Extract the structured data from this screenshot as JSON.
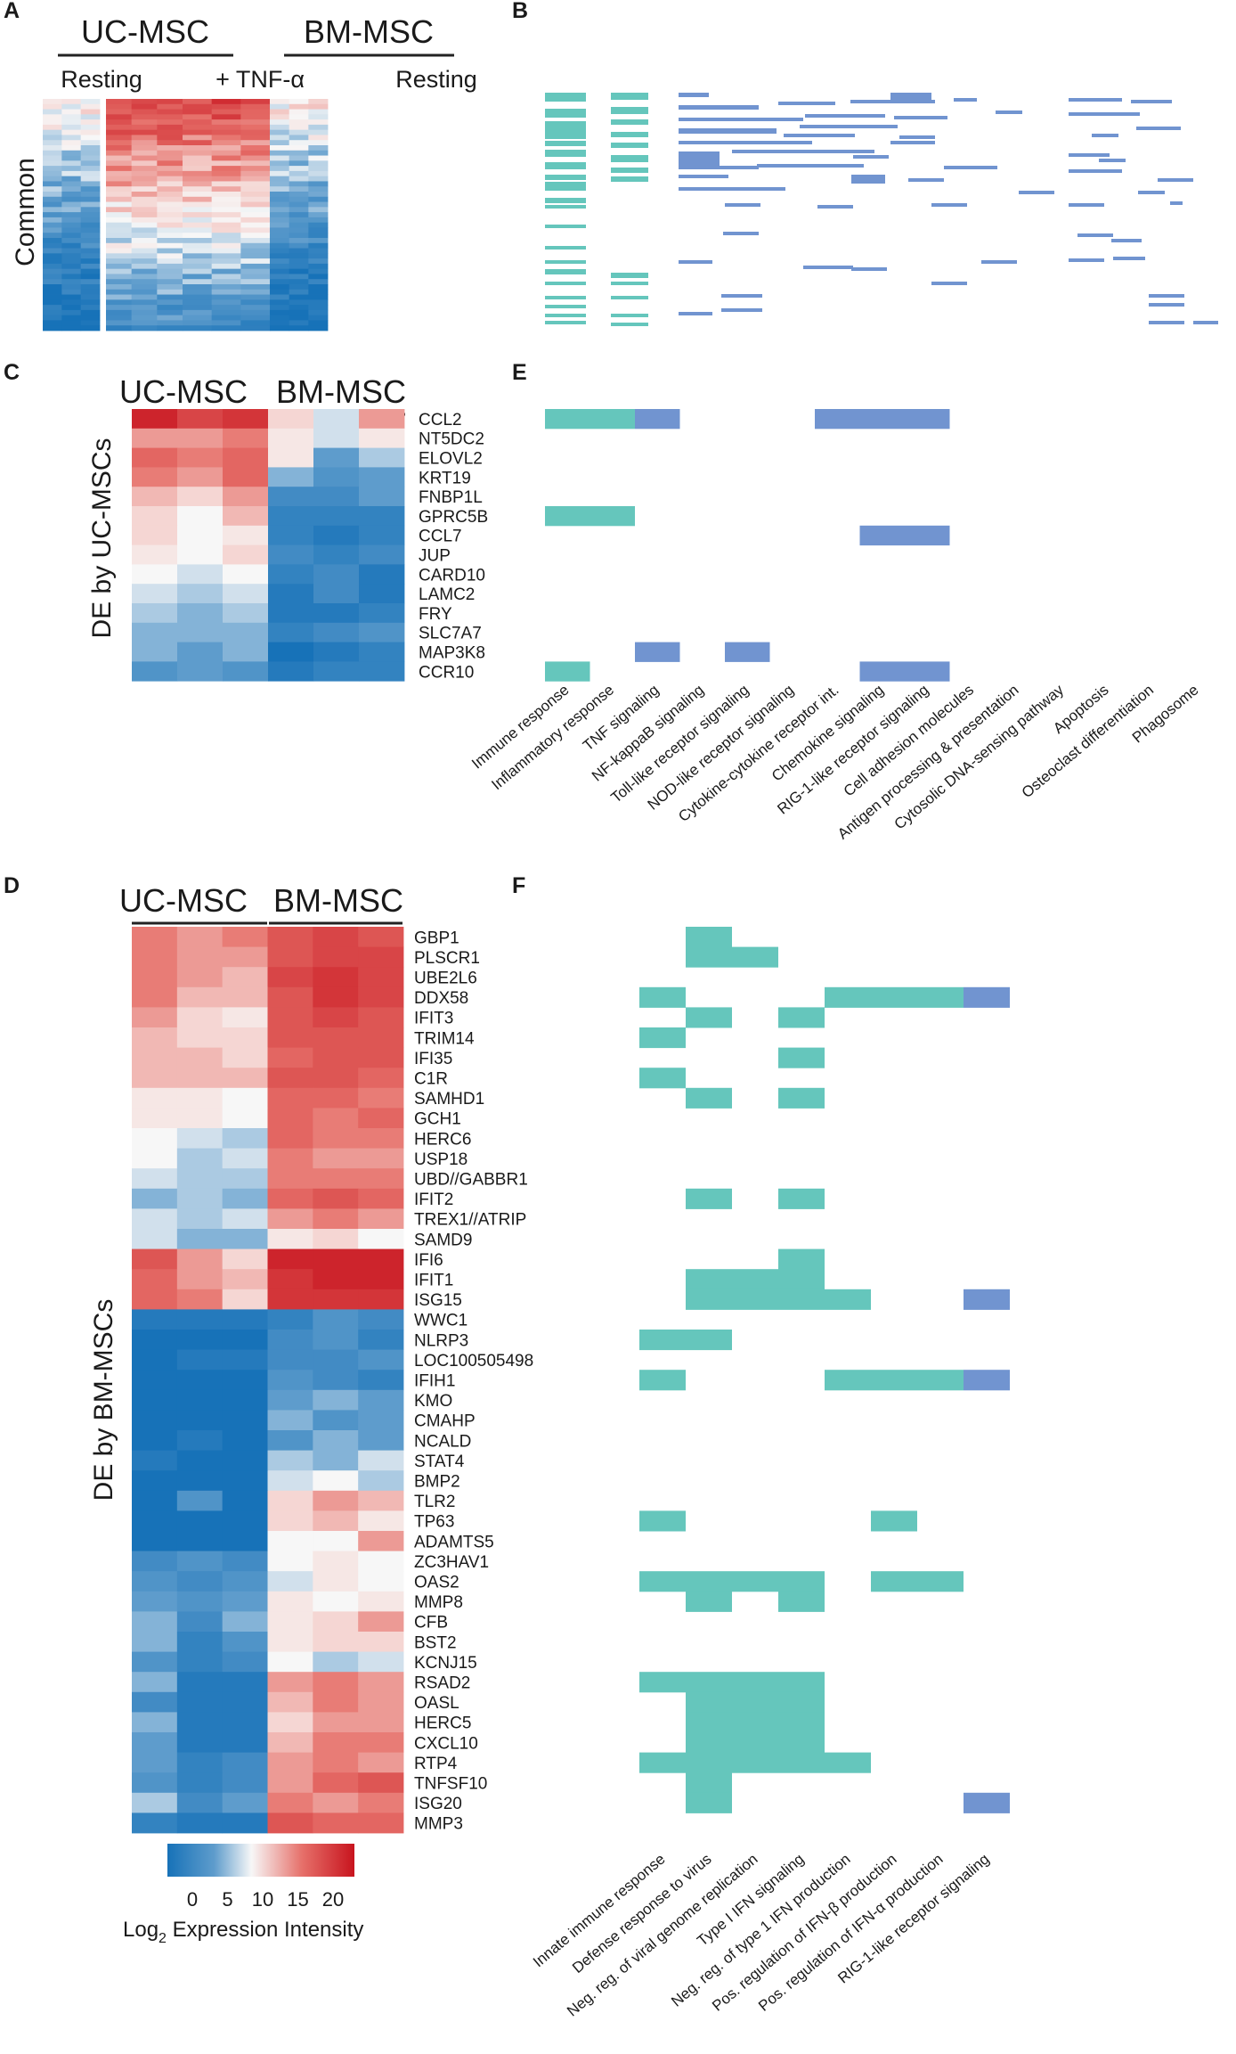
{
  "chart_data": [
    {
      "panel": "A",
      "type": "heatmap",
      "group_labels": [
        "UC-MSC",
        "BM-MSC"
      ],
      "column_labels": [
        "Resting",
        "+ TNF-α",
        "Resting"
      ],
      "row_label": "Common",
      "rows": 45,
      "trend": "Genes commonly induced by TNF-α in UC-MSC and BM-MSC; blue (low) at rest, red (high) after TNF-α"
    },
    {
      "panel": "B",
      "type": "heatmap",
      "description": "Pathway membership of common genes (binary matrix)",
      "colors": {
        "go": "#65c6bc",
        "kegg": "#7194d0"
      }
    },
    {
      "panel": "C",
      "type": "heatmap",
      "group_labels": [
        "UC-MSC",
        "BM-MSC"
      ],
      "row_label": "DE by UC-MSCs",
      "genes": [
        "CCL2",
        "NT5DC2",
        "ELOVL2",
        "KRT19",
        "FNBP1L",
        "GPRC5B",
        "CCL7",
        "JUP",
        "CARD10",
        "LAMC2",
        "FRY",
        "SLC7A7",
        "MAP3K8",
        "CCR10"
      ],
      "values": [
        [
          19,
          17,
          18,
          11,
          8,
          13
        ],
        [
          13,
          13,
          14,
          10,
          8,
          10
        ],
        [
          15,
          14,
          15,
          10,
          5,
          7
        ],
        [
          14,
          13,
          15,
          6,
          4,
          5
        ],
        [
          12,
          11,
          13,
          3,
          3,
          5
        ],
        [
          11,
          9,
          12,
          2,
          2,
          2
        ],
        [
          11,
          9,
          10,
          2,
          1,
          2
        ],
        [
          10,
          9,
          11,
          3,
          2,
          3
        ],
        [
          9,
          8,
          9,
          2,
          3,
          1
        ],
        [
          8,
          7,
          8,
          1,
          3,
          1
        ],
        [
          7,
          6,
          7,
          1,
          1,
          2
        ],
        [
          6,
          6,
          6,
          2,
          3,
          4
        ],
        [
          6,
          5,
          6,
          0,
          1,
          2
        ],
        [
          4,
          5,
          4,
          1,
          2,
          2
        ]
      ],
      "categories": [
        "Immune response",
        "Inflammatory response",
        "TNF signaling",
        "NF-kappaB signaling",
        "Toll-like receptor signaling",
        "NOD-like receptor signaling",
        "Cytokine-cytokine receptor int.",
        "Chemokine signaling",
        "RIG-1-like receptor signaling",
        "Cell adhesion molecules",
        "Antigen processing & presentation",
        "Cytosolic DNA-sensing pathway",
        "Apoptosis",
        "Osteoclast differentiation",
        "Phagosome"
      ],
      "membership": [
        [
          "CCL2",
          [
            0,
            1,
            2,
            6,
            7,
            8
          ]
        ],
        [
          "GPRC5B",
          [
            0,
            1
          ]
        ],
        [
          "CCL7",
          [
            7,
            8
          ]
        ],
        [
          "MAP3K8",
          [
            2,
            4
          ]
        ],
        [
          "CCR10",
          [
            0,
            7,
            8
          ]
        ]
      ],
      "category_types": [
        "go",
        "go",
        "kegg",
        "kegg",
        "kegg",
        "kegg",
        "kegg",
        "kegg",
        "kegg",
        "kegg",
        "kegg",
        "kegg",
        "kegg",
        "kegg",
        "kegg"
      ]
    },
    {
      "panel": "D",
      "type": "heatmap",
      "group_labels": [
        "UC-MSC",
        "BM-MSC"
      ],
      "row_label": "DE by BM-MSCs",
      "genes": [
        "GBP1",
        "PLSCR1",
        "UBE2L6",
        "DDX58",
        "IFIT3",
        "TRIM14",
        "IFI35",
        "C1R",
        "SAMHD1",
        "GCH1",
        "HERC6",
        "USP18",
        "UBD//GABBR1",
        "IFIT2",
        "TREX1//ATRIP",
        "SAMD9",
        "IFI6",
        "IFIT1",
        "ISG15",
        "WWC1",
        "NLRP3",
        "LOC100505498",
        "IFIH1",
        "KMO",
        "CMAHP",
        "NCALD",
        "STAT4",
        "BMP2",
        "TLR2",
        "TP63",
        "ADAMTS5",
        "ZC3HAV1",
        "OAS2",
        "MMP8",
        "CFB",
        "BST2",
        "KCNJ15",
        "RSAD2",
        "OASL",
        "HERC5",
        "CXCL10",
        "RTP4",
        "TNFSF10",
        "ISG20",
        "MMP3"
      ],
      "values": [
        [
          14,
          13,
          14,
          16,
          17,
          16
        ],
        [
          14,
          13,
          13,
          16,
          17,
          17
        ],
        [
          14,
          13,
          12,
          17,
          18,
          17
        ],
        [
          14,
          12,
          12,
          16,
          18,
          17
        ],
        [
          13,
          11,
          10,
          16,
          17,
          16
        ],
        [
          12,
          11,
          11,
          16,
          16,
          16
        ],
        [
          12,
          12,
          11,
          15,
          16,
          16
        ],
        [
          12,
          12,
          12,
          16,
          16,
          15
        ],
        [
          10,
          10,
          9,
          15,
          15,
          14
        ],
        [
          10,
          10,
          9,
          15,
          14,
          15
        ],
        [
          9,
          8,
          7,
          15,
          14,
          14
        ],
        [
          9,
          7,
          8,
          14,
          13,
          13
        ],
        [
          8,
          7,
          7,
          14,
          14,
          14
        ],
        [
          6,
          7,
          6,
          15,
          16,
          15
        ],
        [
          8,
          7,
          8,
          13,
          14,
          13
        ],
        [
          8,
          6,
          6,
          10,
          11,
          9
        ],
        [
          16,
          13,
          11,
          19,
          19,
          19
        ],
        [
          15,
          13,
          12,
          18,
          19,
          19
        ],
        [
          15,
          14,
          11,
          18,
          18,
          18
        ],
        [
          1,
          1,
          1,
          2,
          4,
          3
        ],
        [
          0,
          0,
          0,
          3,
          4,
          2
        ],
        [
          0,
          1,
          1,
          3,
          3,
          4
        ],
        [
          0,
          0,
          0,
          4,
          3,
          2
        ],
        [
          0,
          0,
          0,
          5,
          6,
          5
        ],
        [
          0,
          0,
          0,
          6,
          4,
          5
        ],
        [
          0,
          1,
          0,
          4,
          6,
          5
        ],
        [
          1,
          0,
          0,
          7,
          6,
          8
        ],
        [
          0,
          0,
          0,
          8,
          9,
          7
        ],
        [
          0,
          4,
          0,
          11,
          13,
          12
        ],
        [
          0,
          0,
          0,
          11,
          12,
          10
        ],
        [
          0,
          0,
          0,
          9,
          9,
          13
        ],
        [
          3,
          4,
          3,
          9,
          10,
          9
        ],
        [
          4,
          3,
          4,
          8,
          10,
          9
        ],
        [
          5,
          4,
          5,
          10,
          9,
          10
        ],
        [
          6,
          3,
          6,
          10,
          11,
          13
        ],
        [
          6,
          2,
          4,
          10,
          11,
          11
        ],
        [
          4,
          2,
          3,
          9,
          7,
          8
        ],
        [
          6,
          1,
          1,
          13,
          14,
          13
        ],
        [
          3,
          1,
          1,
          12,
          14,
          13
        ],
        [
          6,
          1,
          1,
          11,
          13,
          13
        ],
        [
          5,
          1,
          1,
          12,
          14,
          14
        ],
        [
          5,
          2,
          3,
          13,
          14,
          13
        ],
        [
          4,
          2,
          3,
          13,
          15,
          16
        ],
        [
          7,
          3,
          5,
          14,
          13,
          14
        ],
        [
          2,
          1,
          1,
          16,
          15,
          15
        ]
      ],
      "categories": [
        "Innate immune response",
        "Defense response to virus",
        "Neg. reg. of viral genome replication",
        "Type I IFN signaling",
        "Neg. reg. of type 1 IFN production",
        "Pos. regulation of IFN-β production",
        "Pos. regulation of IFN-α production",
        "RIG-1-like receptor signaling"
      ],
      "category_types": [
        "go",
        "go",
        "go",
        "go",
        "go",
        "go",
        "go",
        "kegg"
      ],
      "membership": [
        [
          "GBP1",
          [
            1
          ]
        ],
        [
          "PLSCR1",
          [
            1,
            2
          ]
        ],
        [
          "DDX58",
          [
            0,
            4,
            5,
            6,
            7
          ]
        ],
        [
          "IFIT3",
          [
            1,
            3
          ]
        ],
        [
          "TRIM14",
          [
            0
          ]
        ],
        [
          "IFI35",
          [
            3
          ]
        ],
        [
          "C1R",
          [
            0
          ]
        ],
        [
          "SAMHD1",
          [
            1,
            3
          ]
        ],
        [
          "IFIT2",
          [
            1,
            3
          ]
        ],
        [
          "IFI6",
          [
            3
          ]
        ],
        [
          "IFIT1",
          [
            1,
            2,
            3
          ]
        ],
        [
          "ISG15",
          [
            1,
            2,
            3,
            4,
            7
          ]
        ],
        [
          "NLRP3",
          [
            0,
            1
          ]
        ],
        [
          "IFIH1",
          [
            0,
            4,
            5,
            6,
            7
          ]
        ],
        [
          "TP63",
          [
            0,
            5
          ]
        ],
        [
          "OAS2",
          [
            0,
            1,
            2,
            3,
            5,
            6
          ]
        ],
        [
          "MMP8",
          [
            1,
            3
          ]
        ],
        [
          "RSAD2",
          [
            0,
            1,
            2,
            3
          ]
        ],
        [
          "OASL",
          [
            1,
            2,
            3
          ]
        ],
        [
          "HERC5",
          [
            1,
            2,
            3
          ]
        ],
        [
          "CXCL10",
          [
            1,
            2,
            3
          ]
        ],
        [
          "RTP4",
          [
            0,
            1,
            2,
            3,
            4
          ]
        ],
        [
          "TNFSF10",
          [
            1
          ]
        ],
        [
          "ISG20",
          [
            1,
            7
          ]
        ]
      ]
    },
    {
      "panel": "legend",
      "type": "colorbar",
      "ticks": [
        "0",
        "5",
        "10",
        "15",
        "20"
      ],
      "range": [
        0,
        20
      ],
      "title_main": "Log",
      "title_sub": "2",
      "title_rest": " Expression Intensity",
      "colors": {
        "low": "#1772b8",
        "mid": "#f7f7f7",
        "high": "#c8141e"
      }
    }
  ],
  "panel_letters": {
    "a": "A",
    "b": "B",
    "c": "C",
    "d": "D",
    "e": "E",
    "f": "F"
  }
}
